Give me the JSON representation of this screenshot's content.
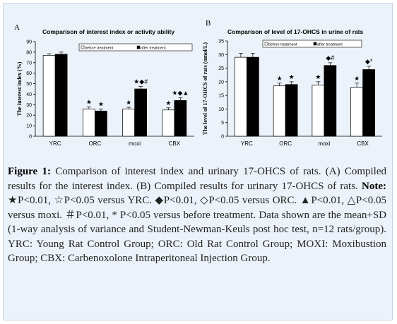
{
  "colors": {
    "background": "#ecf2f9",
    "before_bar": "#ffffff",
    "after_bar": "#000000"
  },
  "chart_data": [
    {
      "type": "bar",
      "panel": "A",
      "title": "Comparison of interest index or activity ability",
      "ylabel": "The interest index (%)",
      "xlabel": "",
      "ylim": [
        0,
        90
      ],
      "ytick_step": 10,
      "grid": false,
      "legend_position": "top-right",
      "categories": [
        "YRC",
        "ORC",
        "moxi",
        "CBX"
      ],
      "series": [
        {
          "name": "before treatment",
          "values": [
            77,
            26,
            26,
            25
          ],
          "errors": [
            1.5,
            2,
            1.5,
            2
          ]
        },
        {
          "name": "after treatment",
          "values": [
            78,
            24,
            45,
            34
          ],
          "errors": [
            2,
            2,
            2.5,
            2.5
          ]
        }
      ],
      "annotations": [
        {
          "category": 1,
          "series": 0,
          "text": "★"
        },
        {
          "category": 1,
          "series": 1,
          "text": "★"
        },
        {
          "category": 2,
          "series": 0,
          "text": "★"
        },
        {
          "category": 2,
          "series": 1,
          "text": "★◆#"
        },
        {
          "category": 3,
          "series": 0,
          "text": "★"
        },
        {
          "category": 3,
          "series": 1,
          "text": "★◆▲"
        }
      ]
    },
    {
      "type": "bar",
      "panel": "B",
      "title": "Comparison of level of 17-OHCS in urine of rats",
      "ylabel": "The level of 17-OHCS of rats (nmol/L)",
      "xlabel": "",
      "ylim": [
        0,
        35
      ],
      "ytick_step": 5,
      "grid": false,
      "legend_position": "top-right",
      "categories": [
        "YRC",
        "ORC",
        "moxi",
        "CBX"
      ],
      "series": [
        {
          "name": "before treatment",
          "values": [
            29,
            18.5,
            18.8,
            18
          ],
          "errors": [
            1.5,
            1,
            1.2,
            1.5
          ]
        },
        {
          "name": "after treatment",
          "values": [
            29,
            19,
            26,
            24.5
          ],
          "errors": [
            1.5,
            1,
            1,
            1.2
          ]
        }
      ],
      "annotations": [
        {
          "category": 1,
          "series": 0,
          "text": "★"
        },
        {
          "category": 1,
          "series": 1,
          "text": "★"
        },
        {
          "category": 2,
          "series": 0,
          "text": "★"
        },
        {
          "category": 2,
          "series": 1,
          "text": "◆#"
        },
        {
          "category": 3,
          "series": 0,
          "text": "★"
        },
        {
          "category": 3,
          "series": 1,
          "text": "◆*"
        }
      ]
    }
  ],
  "caption": {
    "figure_label": "Figure 1:",
    "text_1": " Comparison of interest index and urinary 17-OHCS of rats. (A) Compiled results for the interest index. (B) Compiled results for urinary 17-OHCS of rats. ",
    "note_label": "Note:",
    "text_2": " ★P<0.01, ☆P<0.05 versus YRC. ◆P<0.01, ◇P<0.05 versus ORC. ▲P<0.01, △P<0.05 versus moxi. ＃P<0.01, * P<0.05 versus before treatment. Data shown are the mean+SD (1-way analysis of variance and Student-Newman-Keuls post hoc test, n=12 rats/group). YRC: Young Rat Control Group; ORC: Old Rat Control Group; MOXI: Moxibustion Group; CBX: Carbenoxolone Intraperitoneal Injection Group."
  }
}
